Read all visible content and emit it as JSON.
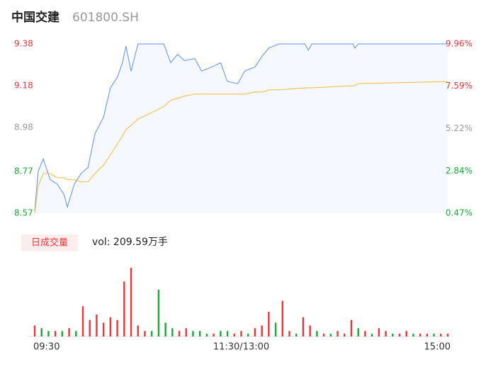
{
  "chart_data": [
    {
      "type": "line",
      "title": "中国交建",
      "subtitle": "601800.SH",
      "x": [
        0,
        2,
        5,
        9,
        13,
        17,
        19,
        23,
        27,
        31,
        35,
        40,
        44,
        48,
        51,
        53,
        56,
        60,
        75,
        79,
        83,
        87,
        93,
        97,
        103,
        108,
        112,
        118,
        122,
        128,
        132,
        136,
        142,
        157,
        159,
        161,
        185,
        186,
        188,
        240
      ],
      "series": [
        {
          "color": "#5b8ff9",
          "values": [
            8.58,
            8.77,
            8.83,
            8.73,
            8.71,
            8.66,
            8.6,
            8.71,
            8.76,
            8.79,
            8.95,
            9.03,
            9.17,
            9.22,
            9.29,
            9.37,
            9.25,
            9.38,
            9.38,
            9.29,
            9.33,
            9.3,
            9.31,
            9.25,
            9.27,
            9.29,
            9.2,
            9.19,
            9.25,
            9.27,
            9.32,
            9.36,
            9.38,
            9.38,
            9.35,
            9.38,
            9.38,
            9.36,
            9.38,
            9.38
          ]
        },
        {
          "color": "#f5b940",
          "values": [
            8.57,
            8.7,
            8.76,
            8.76,
            8.74,
            8.74,
            8.73,
            8.73,
            8.72,
            8.72,
            8.76,
            8.8,
            8.85,
            8.9,
            8.94,
            8.97,
            8.99,
            9.02,
            9.08,
            9.11,
            9.12,
            9.13,
            9.14,
            9.14,
            9.14,
            9.14,
            9.14,
            9.14,
            9.14,
            9.15,
            9.15,
            9.16,
            9.16,
            9.17,
            9.17,
            9.17,
            9.18,
            9.18,
            9.19,
            9.2
          ]
        }
      ],
      "area_color": "#f5f8fe",
      "xlim": [
        0,
        240
      ],
      "xticks": [
        {
          "value": 0,
          "label": "09:30"
        },
        {
          "value": 120,
          "label": "11:30/13:00"
        },
        {
          "value": 240,
          "label": "15:00"
        }
      ],
      "ylim": [
        8.57,
        9.38
      ],
      "yticks": [
        8.57,
        8.77,
        8.98,
        9.18,
        9.38
      ],
      "y2lim": [
        0.47,
        9.96
      ],
      "y2ticks": [
        {
          "value": 0.47,
          "label": "0.47%"
        },
        {
          "value": 2.84,
          "label": "2.84%"
        },
        {
          "value": 5.22,
          "label": "5.22%"
        },
        {
          "value": 7.59,
          "label": "7.59%"
        },
        {
          "value": 9.96,
          "label": "9.96%"
        }
      ],
      "up_color": "#e8363a",
      "down_color": "#1aa83a",
      "flat_color": "#999999"
    },
    {
      "type": "bar",
      "label": "日成交量",
      "total": "vol: 209.59万手",
      "x": [
        0,
        4,
        8,
        12,
        16,
        20,
        24,
        28,
        32,
        36,
        40,
        44,
        48,
        52,
        56,
        60,
        64,
        68,
        72,
        76,
        80,
        84,
        88,
        92,
        96,
        100,
        104,
        108,
        112,
        116,
        120,
        124,
        128,
        132,
        136,
        140,
        144,
        148,
        152,
        156,
        160,
        164,
        168,
        172,
        176,
        180,
        184,
        188,
        192,
        196,
        200,
        204,
        208,
        212,
        216,
        220,
        224,
        228,
        232,
        236,
        240
      ],
      "values": [
        4,
        3,
        2,
        2,
        2,
        3,
        2,
        11,
        6,
        8,
        5,
        7,
        6,
        20,
        25,
        4,
        2,
        2,
        17,
        5,
        3,
        2,
        3,
        2,
        2,
        1,
        1,
        2,
        2,
        1,
        2,
        1,
        3,
        4,
        9,
        5,
        13,
        2,
        1,
        7,
        4,
        2,
        1,
        1,
        2,
        1,
        6,
        3,
        2,
        1,
        3,
        2,
        1,
        1,
        2,
        1,
        1,
        1,
        1,
        1,
        1
      ],
      "colors": [
        "#e8363a",
        "#1aa83a",
        "#1aa83a",
        "#e8363a",
        "#1aa83a",
        "#e8363a",
        "#1aa83a",
        "#e8363a",
        "#e8363a",
        "#e8363a",
        "#e8363a",
        "#e8363a",
        "#e8363a",
        "#e8363a",
        "#e8363a",
        "#e8363a",
        "#e8363a",
        "#1aa83a",
        "#1aa83a",
        "#1aa83a",
        "#1aa83a",
        "#e8363a",
        "#e8363a",
        "#1aa83a",
        "#1aa83a",
        "#1aa83a",
        "#e8363a",
        "#1aa83a",
        "#1aa83a",
        "#e8363a",
        "#e8363a",
        "#1aa83a",
        "#e8363a",
        "#e8363a",
        "#e8363a",
        "#1aa83a",
        "#e8363a",
        "#e8363a",
        "#1aa83a",
        "#e8363a",
        "#e8363a",
        "#1aa83a",
        "#e8363a",
        "#1aa83a",
        "#e8363a",
        "#e8363a",
        "#e8363a",
        "#1aa83a",
        "#e8363a",
        "#1aa83a",
        "#e8363a",
        "#e8363a",
        "#1aa83a",
        "#e8363a",
        "#e8363a",
        "#1aa83a",
        "#e8363a",
        "#e8363a",
        "#1aa83a",
        "#e8363a",
        "#e8363a"
      ],
      "xlim": [
        0,
        240
      ],
      "ylim": [
        0,
        25
      ]
    }
  ]
}
